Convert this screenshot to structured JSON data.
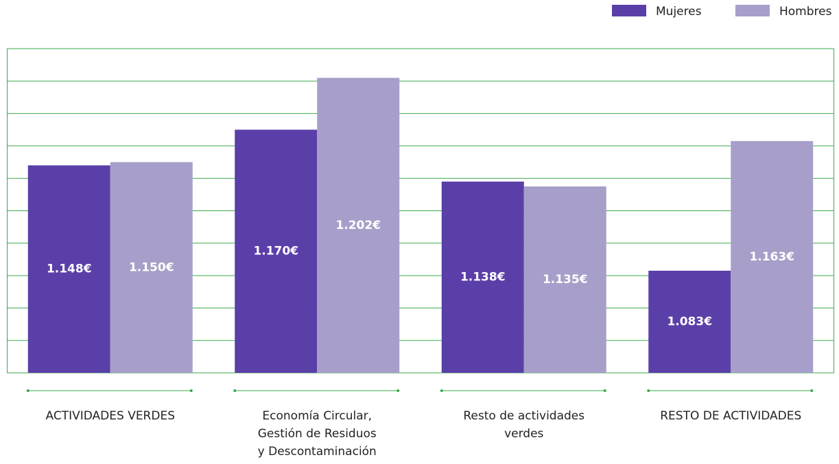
{
  "chart_data": {
    "type": "bar",
    "categories": [
      "ACTIVIDADES VERDES",
      "Economía Circular,\nGestión de Residuos\ny Descontaminación",
      "Resto de actividades\nverdes",
      "RESTO DE ACTIVIDADES"
    ],
    "series": [
      {
        "name": "Mujeres",
        "color": "#5b3fa8",
        "values": [
          1148,
          1170,
          1138,
          1083
        ],
        "value_labels": [
          "1.148€",
          "1.170€",
          "1.138€",
          "1.083€"
        ]
      },
      {
        "name": "Hombres",
        "color": "#a79fc9",
        "values": [
          1150,
          1202,
          1135,
          1163
        ],
        "value_labels": [
          "1.150€",
          "1.202€",
          "1.135€",
          "1.163€"
        ]
      }
    ],
    "ylim": [
      1020,
      1220
    ],
    "yticks": [
      1020,
      1040,
      1060,
      1080,
      1100,
      1120,
      1140,
      1160,
      1180,
      1200,
      1220
    ],
    "grid": true,
    "grid_color": "#3aaa4a",
    "legend": "top-right"
  }
}
